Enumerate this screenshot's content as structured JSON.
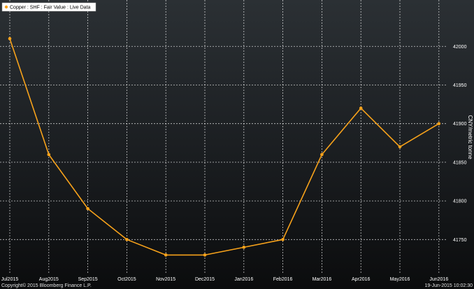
{
  "chart_data": {
    "type": "line",
    "legend_text": "Copper : SHF : Fair Value : Live Data",
    "legend_placement": "top-left",
    "categories": [
      "Jul2015",
      "Aug2015",
      "Sep2015",
      "Oct2015",
      "Nov2015",
      "Dec2015",
      "Jan2016",
      "Feb2016",
      "Mar2016",
      "Apr2016",
      "May2016",
      "Jun2016"
    ],
    "series": [
      {
        "values": [
          42010,
          41860,
          41790,
          41750,
          41730,
          41730,
          41740,
          41750,
          41860,
          41920,
          41870,
          41900
        ]
      }
    ],
    "ylabel": "CNY/metric tonne",
    "y_ticks": [
      41750,
      41800,
      41850,
      41900,
      41950,
      42000
    ],
    "y_axis_side": "right",
    "ylim": [
      41705,
      42060
    ],
    "grid": true,
    "colors": {
      "line": "#f7a21b",
      "grid": "#ffffff",
      "legend_bg": "#ffffff"
    }
  },
  "footer": {
    "copyright": "Copyright© 2015 Bloomberg Finance L.P.",
    "timestamp": "19-Jun-2015 10:02:30"
  }
}
